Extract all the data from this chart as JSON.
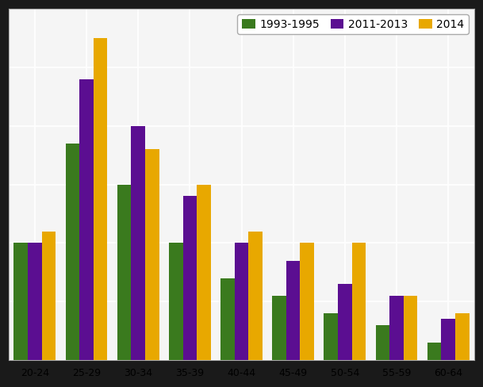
{
  "categories": [
    "20-24",
    "25-29",
    "30-34",
    "35-39",
    "40-44",
    "45-49",
    "50-54",
    "55-59",
    "60-64"
  ],
  "series": {
    "1993-1995": [
      20,
      37,
      30,
      20,
      14,
      11,
      8,
      6,
      3
    ],
    "2011-2013": [
      20,
      48,
      40,
      28,
      20,
      17,
      13,
      11,
      7
    ],
    "2014": [
      22,
      55,
      36,
      30,
      22,
      20,
      20,
      11,
      8
    ]
  },
  "colors": {
    "1993-1995": "#3a7a1e",
    "2011-2013": "#5b0e91",
    "2014": "#e8a800"
  },
  "legend_labels": [
    "1993-1995",
    "2011-2013",
    "2014"
  ],
  "ylim": [
    0,
    60
  ],
  "figure_bg_color": "#1a1a1a",
  "plot_bg_color": "#f5f5f5",
  "grid_color": "#ffffff",
  "bar_width": 0.27,
  "legend_fontsize": 10,
  "tick_fontsize": 9,
  "figsize": [
    6.09,
    4.88
  ],
  "dpi": 100
}
